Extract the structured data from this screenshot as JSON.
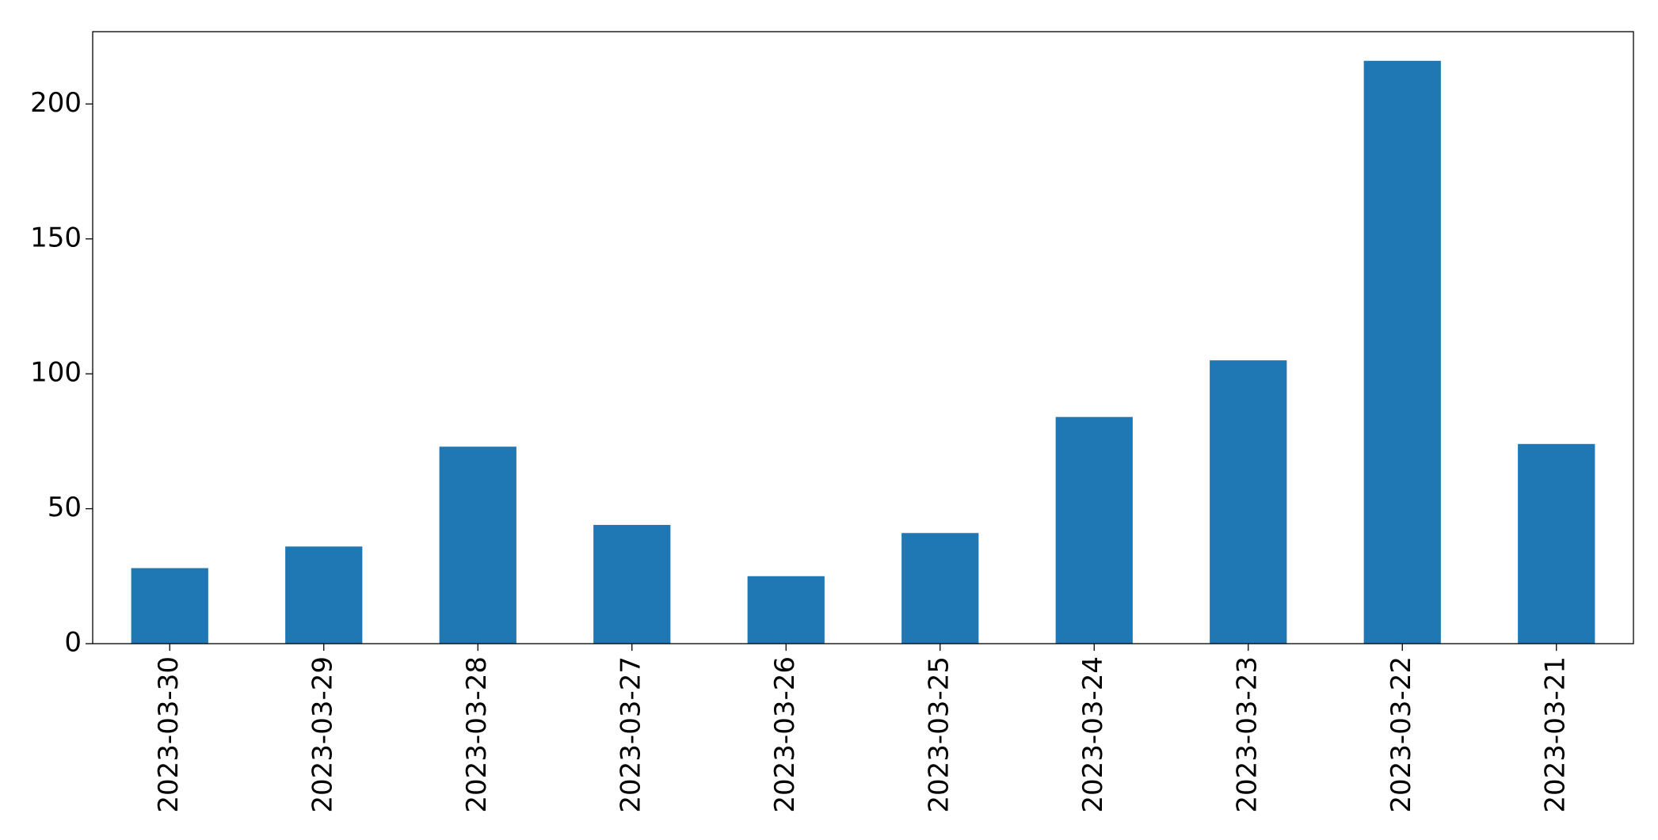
{
  "chart_data": {
    "type": "bar",
    "categories": [
      "2023-03-30",
      "2023-03-29",
      "2023-03-28",
      "2023-03-27",
      "2023-03-26",
      "2023-03-25",
      "2023-03-24",
      "2023-03-23",
      "2023-03-22",
      "2023-03-21"
    ],
    "values": [
      28,
      36,
      73,
      44,
      25,
      41,
      84,
      105,
      216,
      74
    ],
    "color": "#1f77b4",
    "ylim": [
      0,
      226.8
    ],
    "yticks": [
      0,
      50,
      100,
      150,
      200
    ],
    "grid": false
  }
}
